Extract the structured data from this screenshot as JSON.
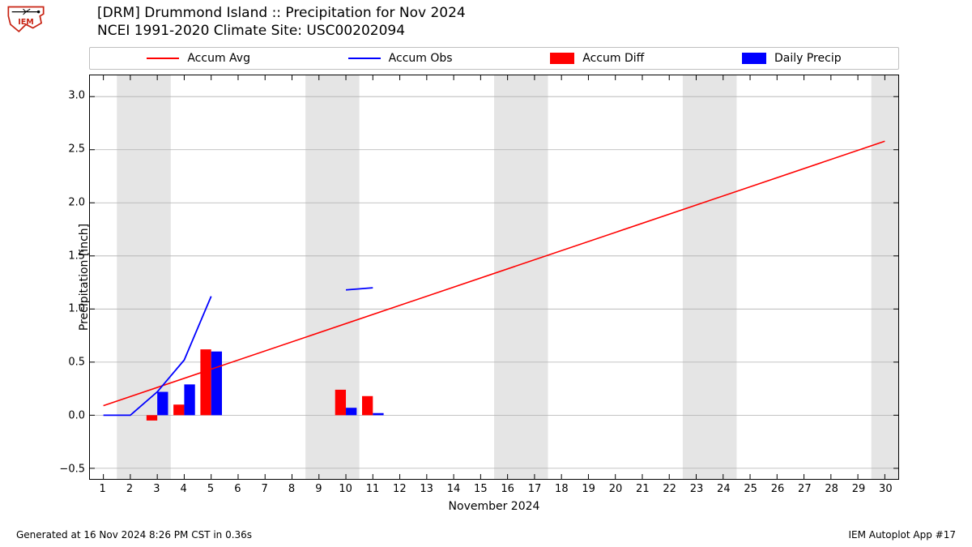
{
  "title_line1": "[DRM] Drummond Island :: Precipitation for Nov 2024",
  "title_line2": "NCEI 1991-2020 Climate Site: USC00202094",
  "legend": {
    "items": [
      {
        "label": "Accum Avg",
        "type": "line",
        "color": "#ff0000"
      },
      {
        "label": "Accum Obs",
        "type": "line",
        "color": "#0000ff"
      },
      {
        "label": "Accum Diff",
        "type": "box",
        "color": "#ff0000"
      },
      {
        "label": "Daily Precip",
        "type": "box",
        "color": "#0000ff"
      }
    ]
  },
  "chart": {
    "type": "line+bar",
    "xlabel": "November 2024",
    "ylabel": "Precipitation [inch]",
    "xlim": [
      0.5,
      30.5
    ],
    "ylim": [
      -0.6,
      3.2
    ],
    "xticks": [
      1,
      2,
      3,
      4,
      5,
      6,
      7,
      8,
      9,
      10,
      11,
      12,
      13,
      14,
      15,
      16,
      17,
      18,
      19,
      20,
      21,
      22,
      23,
      24,
      25,
      26,
      27,
      28,
      29,
      30
    ],
    "yticks": [
      -0.5,
      0.0,
      0.5,
      1.0,
      1.5,
      2.0,
      2.5,
      3.0
    ],
    "ytick_labels": [
      "−0.5",
      "0.0",
      "0.5",
      "1.0",
      "1.5",
      "2.0",
      "2.5",
      "3.0"
    ],
    "grid_color": "#b0b0b0",
    "grid_linewidth": 0.8,
    "background_color": "#ffffff",
    "weekend_band_color": "#e5e5e5",
    "weekend_pairs": [
      [
        2,
        3
      ],
      [
        9,
        10
      ],
      [
        16,
        17
      ],
      [
        23,
        24
      ],
      [
        30,
        30.5
      ]
    ],
    "bar_width": 0.4,
    "accum_avg": {
      "color": "#ff0000",
      "linewidth": 1.6,
      "x": [
        1,
        30
      ],
      "y": [
        0.09,
        2.58
      ]
    },
    "accum_obs_segments": [
      {
        "color": "#0000ff",
        "linewidth": 1.8,
        "x": [
          1,
          2,
          3,
          4,
          5
        ],
        "y": [
          0.0,
          0.0,
          0.22,
          0.52,
          1.12
        ]
      },
      {
        "color": "#0000ff",
        "linewidth": 1.8,
        "x": [
          10,
          11
        ],
        "y": [
          1.18,
          1.2
        ]
      }
    ],
    "accum_diff_bars": {
      "color": "#ff0000",
      "x": [
        3,
        4,
        5,
        10,
        11
      ],
      "y": [
        -0.05,
        0.1,
        0.62,
        0.24,
        0.18
      ]
    },
    "daily_precip_bars": {
      "color": "#0000ff",
      "x": [
        3,
        4,
        5,
        10,
        11
      ],
      "y": [
        0.22,
        0.29,
        0.6,
        0.07,
        0.02
      ]
    }
  },
  "footer_left": "Generated at 16 Nov 2024 8:26 PM CST in 0.36s",
  "footer_right": "IEM Autoplot App #17",
  "logo_colors": {
    "red": "#c82414",
    "black": "#000000"
  }
}
